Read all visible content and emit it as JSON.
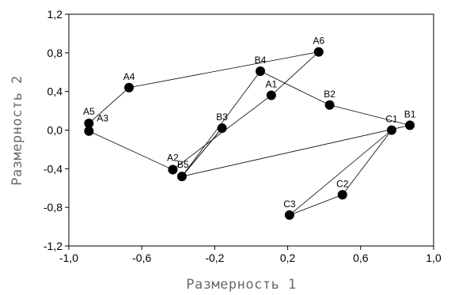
{
  "chart_data": {
    "type": "scatter",
    "xlabel": "Размерность 1",
    "ylabel": "Размерность 2",
    "xlim": [
      -1.0,
      1.0
    ],
    "ylim": [
      -1.2,
      1.2
    ],
    "x_ticks": [
      "-1,0",
      "-0,6",
      "-0,2",
      "0,2",
      "0,6",
      "1,0"
    ],
    "x_tick_values": [
      -1.0,
      -0.6,
      -0.2,
      0.2,
      0.6,
      1.0
    ],
    "y_ticks": [
      "1,2",
      "0,8",
      "0,4",
      "0,0",
      "-0,4",
      "-0,8",
      "-1,2"
    ],
    "y_tick_values": [
      1.2,
      0.8,
      0.4,
      0.0,
      -0.4,
      -0.8,
      -1.2
    ],
    "grid": false,
    "points": [
      {
        "label": "A1",
        "x": 0.11,
        "y": 0.36
      },
      {
        "label": "A2",
        "x": -0.43,
        "y": -0.41
      },
      {
        "label": "A3",
        "x": -0.89,
        "y": -0.01
      },
      {
        "label": "A4",
        "x": -0.67,
        "y": 0.44
      },
      {
        "label": "A5",
        "x": -0.89,
        "y": 0.07
      },
      {
        "label": "A6",
        "x": 0.37,
        "y": 0.81
      },
      {
        "label": "B1",
        "x": 0.87,
        "y": 0.05
      },
      {
        "label": "B2",
        "x": 0.43,
        "y": 0.26
      },
      {
        "label": "B3",
        "x": -0.16,
        "y": 0.02
      },
      {
        "label": "B4",
        "x": 0.05,
        "y": 0.61
      },
      {
        "label": "B5",
        "x": -0.38,
        "y": -0.48
      },
      {
        "label": "C1",
        "x": 0.77,
        "y": 0.0
      },
      {
        "label": "C2",
        "x": 0.5,
        "y": -0.67
      },
      {
        "label": "C3",
        "x": 0.21,
        "y": -0.88
      }
    ],
    "connections": [
      [
        "A3",
        "A2"
      ],
      [
        "A2",
        "A1"
      ],
      [
        "A1",
        "A6"
      ],
      [
        "A6",
        "A4"
      ],
      [
        "A4",
        "A5"
      ],
      [
        "A5",
        "A3"
      ],
      [
        "B1",
        "B2"
      ],
      [
        "B2",
        "B4"
      ],
      [
        "B4",
        "B5"
      ],
      [
        "B5",
        "B3"
      ],
      [
        "B3",
        "B5"
      ],
      [
        "B5",
        "B1"
      ],
      [
        "C1",
        "C2"
      ],
      [
        "C2",
        "C3"
      ],
      [
        "C3",
        "C1"
      ]
    ]
  }
}
